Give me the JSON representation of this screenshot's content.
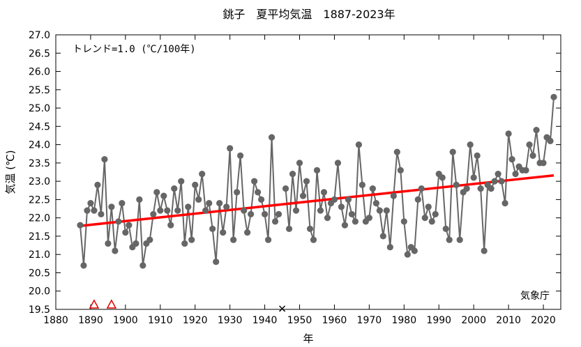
{
  "chart_data": {
    "type": "line",
    "title": "銚子　夏平均気温　1887-2023年",
    "xlabel": "年",
    "ylabel": "気温 (℃)",
    "trend_label": "トレンド=1.0 (℃/100年)",
    "source_label": "気象庁",
    "xlim": [
      1880,
      2025
    ],
    "ylim": [
      19.5,
      27.0
    ],
    "x_ticks": [
      1880,
      1890,
      1900,
      1910,
      1920,
      1930,
      1940,
      1950,
      1960,
      1970,
      1980,
      1990,
      2000,
      2010,
      2020
    ],
    "y_ticks": [
      "19.5",
      "20.0",
      "20.5",
      "21.0",
      "21.5",
      "22.0",
      "22.5",
      "23.0",
      "23.5",
      "24.0",
      "24.5",
      "25.0",
      "25.5",
      "26.0",
      "26.5",
      "27.0"
    ],
    "grid": false,
    "colors": {
      "series": "#666666",
      "trend": "#ff0000",
      "station_move": "#e00000",
      "missing": "#000000"
    },
    "series": [
      {
        "x_start": 1887,
        "values": [
          21.8,
          20.7,
          22.2,
          22.4,
          22.2,
          22.9,
          22.1,
          23.6,
          21.3,
          22.3,
          21.1,
          21.9,
          22.4,
          21.6,
          21.8,
          21.2,
          21.3,
          22.5,
          20.7,
          21.3,
          21.4,
          22.1,
          22.7,
          22.2,
          22.6,
          22.2,
          21.8,
          22.8,
          22.2,
          23.0,
          21.3,
          22.3,
          21.4,
          22.9,
          22.5,
          23.2,
          22.2,
          22.4,
          21.7,
          20.8,
          22.4,
          21.6,
          22.3,
          23.9,
          21.4,
          22.7,
          23.7,
          22.2,
          21.6,
          22.1,
          23.0,
          22.7,
          22.5,
          22.1,
          21.4,
          24.2,
          21.9,
          22.1,
          null,
          22.8,
          21.7,
          23.2,
          22.2,
          23.5,
          22.6,
          23.0,
          21.7,
          21.4,
          23.3,
          22.2,
          22.7,
          22.0,
          22.4,
          22.5,
          23.5,
          22.3,
          21.8,
          22.5,
          22.1,
          21.9,
          24.0,
          22.9,
          21.9,
          22.0,
          22.8,
          22.4,
          22.2,
          21.5,
          22.2,
          21.2,
          22.6,
          23.8,
          23.3,
          21.9,
          21.0,
          21.2,
          21.1,
          22.5,
          22.8,
          22.0,
          22.3,
          21.9,
          22.1,
          23.2,
          23.1,
          21.7,
          21.4,
          23.8,
          22.9,
          21.4,
          22.7,
          22.8,
          24.0,
          23.1,
          23.7,
          22.8,
          21.1,
          22.9,
          22.8,
          23.0,
          23.2,
          23.0,
          22.4,
          24.3,
          23.6,
          23.2,
          23.4,
          23.3,
          23.3,
          24.0,
          23.7,
          24.4,
          23.5,
          23.5,
          24.2,
          24.1,
          25.3
        ]
      }
    ],
    "trend_line": {
      "x": [
        1887,
        2023
      ],
      "y": [
        21.78,
        23.16
      ]
    },
    "station_move_marks": [
      1891,
      1896
    ],
    "missing_marks": [
      1945
    ]
  }
}
